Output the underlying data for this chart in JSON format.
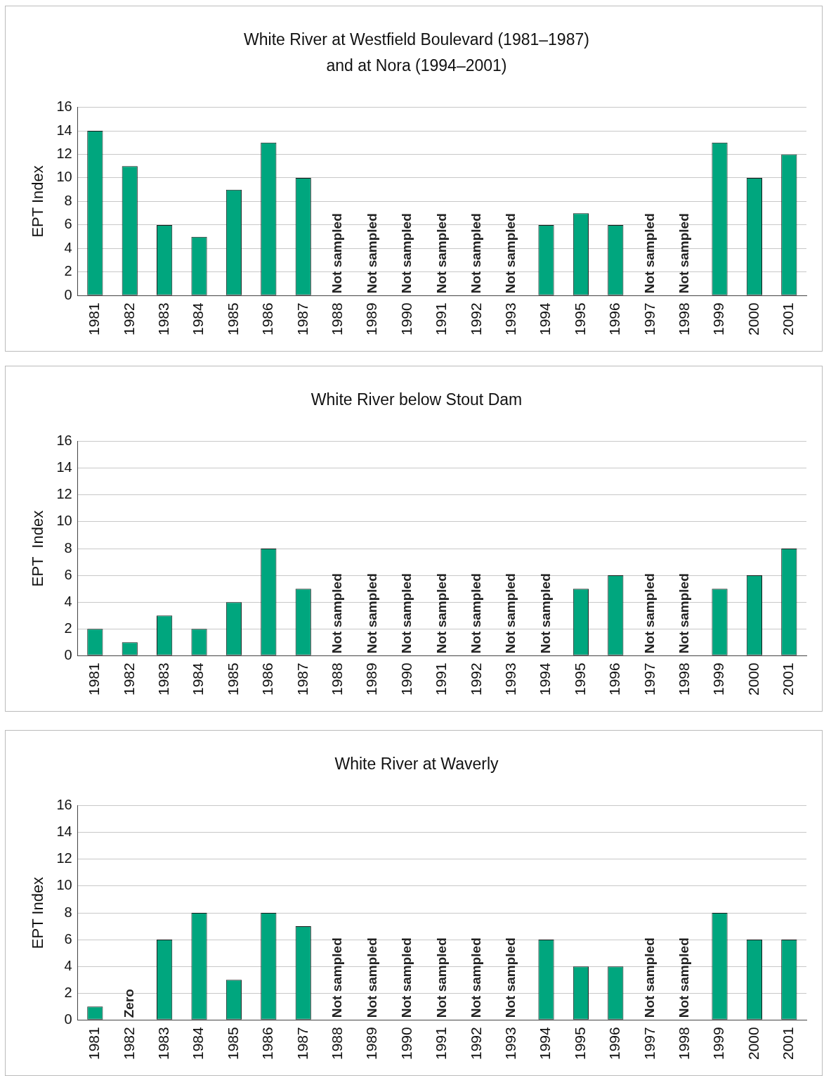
{
  "chart_data": [
    {
      "type": "bar",
      "title": "White River at Westfield Boulevard (1981–1987)\nand at Nora (1994–2001)",
      "ylabel": "EPT Index",
      "categories": [
        "1981",
        "1982",
        "1983",
        "1984",
        "1985",
        "1986",
        "1987",
        "1988",
        "1989",
        "1990",
        "1991",
        "1992",
        "1993",
        "1994",
        "1995",
        "1996",
        "1997",
        "1998",
        "1999",
        "2000",
        "2001"
      ],
      "values": [
        14,
        11,
        6,
        5,
        9,
        13,
        10,
        null,
        null,
        null,
        null,
        null,
        null,
        6,
        7,
        6,
        null,
        null,
        13,
        10,
        12
      ],
      "value_labels": [
        null,
        null,
        null,
        null,
        null,
        null,
        null,
        "Not sampled",
        "Not sampled",
        "Not sampled",
        "Not sampled",
        "Not sampled",
        "Not sampled",
        null,
        null,
        null,
        "Not sampled",
        "Not sampled",
        null,
        null,
        null
      ],
      "color": "#00a67e",
      "ylim": [
        0,
        16
      ],
      "yticks": [
        0,
        2,
        4,
        6,
        8,
        10,
        12,
        14,
        16
      ],
      "grid": "y",
      "legend": false
    },
    {
      "type": "bar",
      "title": "White River below Stout Dam",
      "ylabel": "EPT  Index",
      "categories": [
        "1981",
        "1982",
        "1983",
        "1984",
        "1985",
        "1986",
        "1987",
        "1988",
        "1989",
        "1990",
        "1991",
        "1992",
        "1993",
        "1994",
        "1995",
        "1996",
        "1997",
        "1998",
        "1999",
        "2000",
        "2001"
      ],
      "values": [
        2,
        1,
        3,
        2,
        4,
        8,
        5,
        null,
        null,
        null,
        null,
        null,
        null,
        null,
        5,
        6,
        null,
        null,
        5,
        6,
        8
      ],
      "value_labels": [
        null,
        null,
        null,
        null,
        null,
        null,
        null,
        "Not sampled",
        "Not sampled",
        "Not sampled",
        "Not sampled",
        "Not sampled",
        "Not sampled",
        "Not sampled",
        null,
        null,
        "Not sampled",
        "Not sampled",
        null,
        null,
        null
      ],
      "color": "#00a67e",
      "ylim": [
        0,
        16
      ],
      "yticks": [
        0,
        2,
        4,
        6,
        8,
        10,
        12,
        14,
        16
      ],
      "grid": "y",
      "legend": false
    },
    {
      "type": "bar",
      "title": "White River at Waverly",
      "ylabel": "EPT Index",
      "categories": [
        "1981",
        "1982",
        "1983",
        "1984",
        "1985",
        "1986",
        "1987",
        "1988",
        "1989",
        "1990",
        "1991",
        "1992",
        "1993",
        "1994",
        "1995",
        "1996",
        "1997",
        "1998",
        "1999",
        "2000",
        "2001"
      ],
      "values": [
        1,
        0,
        6,
        8,
        3,
        8,
        7,
        null,
        null,
        null,
        null,
        null,
        null,
        6,
        4,
        4,
        null,
        null,
        8,
        6,
        6
      ],
      "value_labels": [
        null,
        "Zero",
        null,
        null,
        null,
        null,
        null,
        "Not sampled",
        "Not sampled",
        "Not sampled",
        "Not sampled",
        "Not sampled",
        "Not sampled",
        null,
        null,
        null,
        "Not sampled",
        "Not sampled",
        null,
        null,
        null
      ],
      "color": "#00a67e",
      "ylim": [
        0,
        16
      ],
      "yticks": [
        0,
        2,
        4,
        6,
        8,
        10,
        12,
        14,
        16
      ],
      "grid": "y",
      "legend": false
    }
  ]
}
